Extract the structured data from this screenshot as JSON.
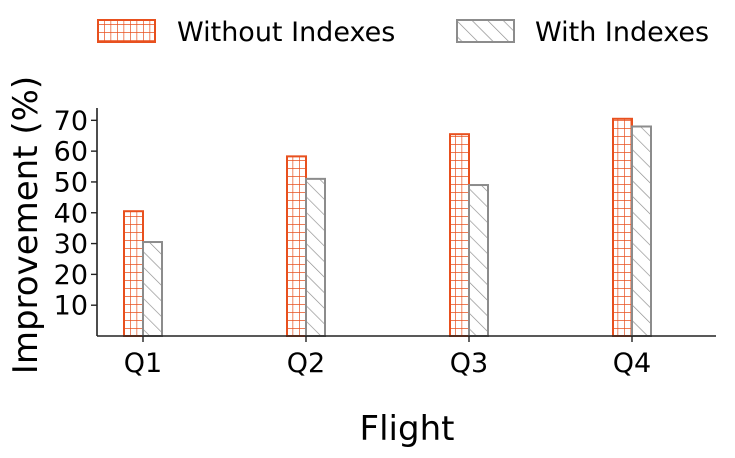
{
  "chart_data": {
    "type": "bar",
    "title": "",
    "xlabel": "Flight",
    "ylabel": "Improvement (%)",
    "categories": [
      "Q1",
      "Q2",
      "Q3",
      "Q4"
    ],
    "series": [
      {
        "name": "Without Indexes",
        "values": [
          40.5,
          58.3,
          65.5,
          70.5
        ],
        "color": "#e8501e",
        "pattern": "grid"
      },
      {
        "name": "With Indexes",
        "values": [
          30.5,
          51.0,
          49.0,
          68.0
        ],
        "color": "#8c8c8c",
        "pattern": "diagonal-hatch"
      }
    ],
    "ylim": [
      0,
      74
    ],
    "yticks": [
      10,
      20,
      30,
      40,
      50,
      60,
      70
    ],
    "grid": false,
    "legend_position": "top",
    "spines": [
      "left",
      "bottom"
    ]
  }
}
